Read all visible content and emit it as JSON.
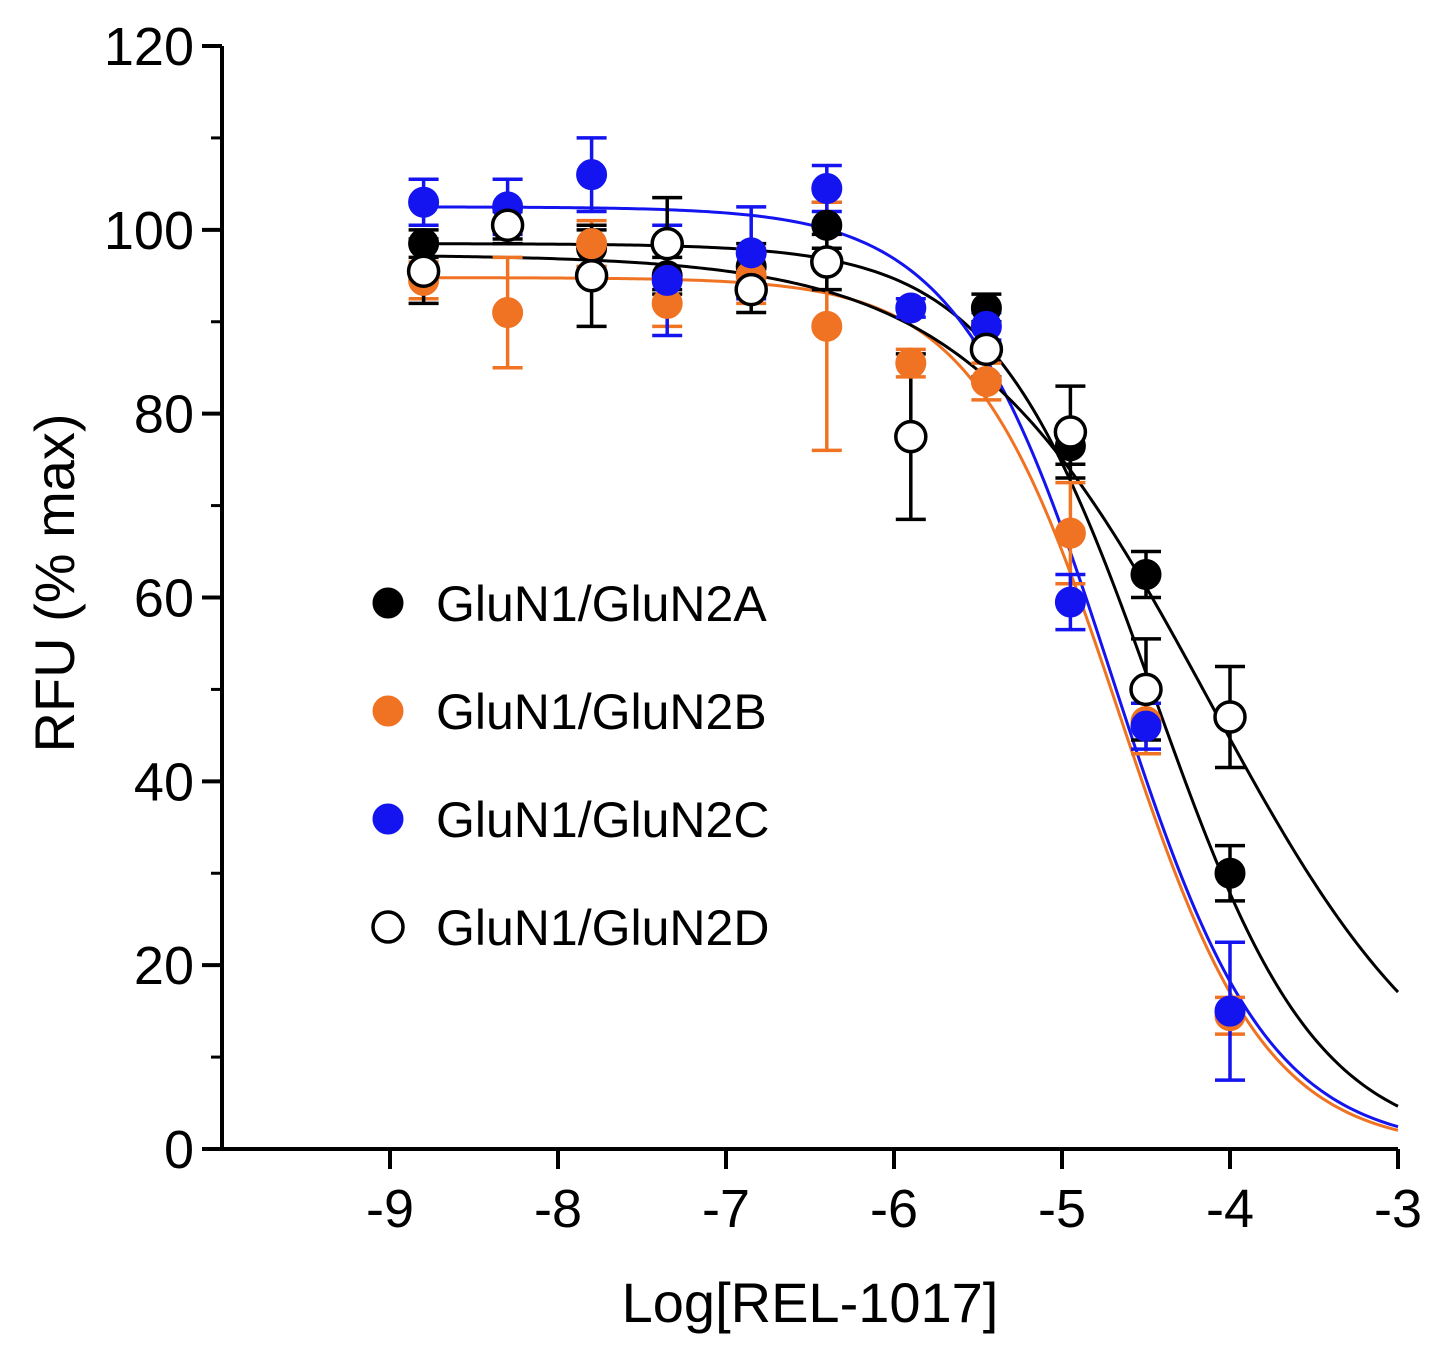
{
  "chart_data": {
    "type": "scatter",
    "title": "",
    "xlabel": "Log[REL-1017]",
    "ylabel": "RFU (% max)",
    "xlim": [
      -10,
      -3
    ],
    "ylim": [
      0,
      120
    ],
    "xticks": [
      -9,
      -8,
      -7,
      -6,
      -5,
      -4,
      -3
    ],
    "xtick_labels": [
      "-9",
      "-8",
      "-7",
      "-6",
      "-5",
      "-4",
      "-3"
    ],
    "yticks": [
      0,
      20,
      40,
      60,
      80,
      100,
      120
    ],
    "ytick_labels": [
      "0",
      "20",
      "40",
      "60",
      "80",
      "100",
      "120"
    ],
    "legend_position": "center-left",
    "series": [
      {
        "name": "GluN1/GluN2A",
        "color": "#000000",
        "marker": "filled-circle",
        "x": [
          -8.8,
          -8.3,
          -7.8,
          -7.35,
          -6.85,
          -6.4,
          -5.45,
          -4.95,
          -4.5,
          -4.0
        ],
        "y": [
          98.5,
          100.5,
          98,
          95,
          96,
          100.5,
          91.5,
          76.5,
          62.5,
          30
        ],
        "err": [
          1.5,
          1.5,
          2,
          2,
          2.5,
          2.5,
          1.5,
          2,
          2.5,
          3
        ],
        "fit": {
          "top": 98.5,
          "bottom": 0,
          "logIC50": -4.45,
          "hill": -0.9
        }
      },
      {
        "name": "GluN1/GluN2B",
        "color": "#f07323",
        "marker": "filled-circle",
        "x": [
          -8.8,
          -8.3,
          -7.8,
          -7.35,
          -6.85,
          -6.4,
          -5.9,
          -5.45,
          -4.95,
          -4.5,
          -4.0
        ],
        "y": [
          94.5,
          91,
          98.5,
          92,
          95,
          89.5,
          85.5,
          83.5,
          67,
          46.5,
          14.5
        ],
        "err": [
          2,
          6,
          2.5,
          2.5,
          3,
          13.5,
          1.5,
          2,
          5.5,
          3.5,
          2
        ],
        "fit": {
          "top": 94.8,
          "bottom": 0,
          "logIC50": -4.66,
          "hill": -1.0
        }
      },
      {
        "name": "GluN1/GluN2C",
        "color": "#1414f0",
        "marker": "filled-circle",
        "x": [
          -8.8,
          -8.3,
          -7.8,
          -7.35,
          -6.85,
          -6.4,
          -5.9,
          -5.45,
          -4.95,
          -4.5,
          -4.0
        ],
        "y": [
          103,
          102.5,
          106,
          94.5,
          97.5,
          104.5,
          91.5,
          89.5,
          59.5,
          46,
          15
        ],
        "err": [
          2.5,
          3,
          4,
          6,
          5,
          2.5,
          1,
          1.5,
          3,
          2.5,
          7.5
        ],
        "fit": {
          "top": 102.5,
          "bottom": 0,
          "logIC50": -4.7,
          "hill": -0.95
        }
      },
      {
        "name": "GluN1/GluN2D",
        "color": "#000000",
        "marker": "open-circle",
        "x": [
          -8.8,
          -8.3,
          -7.8,
          -7.35,
          -6.85,
          -6.4,
          -5.9,
          -5.45,
          -4.95,
          -4.5,
          -4.0
        ],
        "y": [
          95.5,
          100.5,
          95,
          98.5,
          93.5,
          96.5,
          77.5,
          87,
          78,
          50,
          47
        ],
        "err": [
          3.5,
          2,
          5.5,
          5,
          2.5,
          3,
          9,
          3,
          5,
          5.5,
          5.5
        ],
        "fit": {
          "top": 97.3,
          "bottom": 0,
          "logIC50": -4.12,
          "hill": -0.6
        }
      }
    ]
  }
}
